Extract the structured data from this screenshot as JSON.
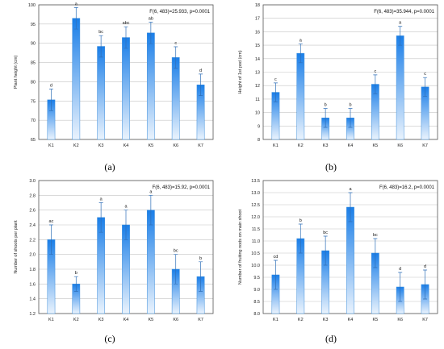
{
  "colors": {
    "bar_top": "#1a7ee8",
    "bar_bottom": "#eaf3fd",
    "bar_stroke": "#3f8fdb",
    "error_bar": "#2f6fb8",
    "grid": "#c4c4c4",
    "frame": "#555555"
  },
  "panels": [
    {
      "caption": "(a)",
      "chart_data": {
        "type": "bar",
        "categories": [
          "K1",
          "K2",
          "K3",
          "K4",
          "K5",
          "K6",
          "K7"
        ],
        "values": [
          75.3,
          96.5,
          89.2,
          91.5,
          92.7,
          86.3,
          79.2
        ],
        "error": [
          2.8,
          2.8,
          2.8,
          2.8,
          2.8,
          2.8,
          2.8
        ],
        "letters": [
          "d",
          "a",
          "bc",
          "abc",
          "ab",
          "c",
          "d"
        ],
        "ylabel": "Plant height (cm)",
        "xlabel": "",
        "ylim": [
          65,
          100
        ],
        "yticks": [
          "65",
          "70",
          "75",
          "80",
          "85",
          "90",
          "95",
          "100"
        ],
        "stat": "F(6, 483)=25.933, p=0.0001",
        "grid": true
      }
    },
    {
      "caption": "(b)",
      "chart_data": {
        "type": "bar",
        "categories": [
          "K1",
          "K2",
          "K3",
          "K4",
          "K5",
          "K6",
          "K7"
        ],
        "values": [
          11.5,
          14.4,
          9.6,
          9.6,
          12.1,
          15.7,
          11.9
        ],
        "error": [
          0.7,
          0.7,
          0.7,
          0.7,
          0.7,
          0.7,
          0.7
        ],
        "letters": [
          "c",
          "a",
          "b",
          "b",
          "c",
          "a",
          "c"
        ],
        "ylabel": "Height of 1st pod (cm)",
        "xlabel": "",
        "ylim": [
          8,
          18
        ],
        "yticks": [
          "8",
          "9",
          "10",
          "11",
          "12",
          "13",
          "14",
          "15",
          "16",
          "17",
          "18"
        ],
        "stat": "F(6, 483)=35.944, p=0.0001",
        "grid": true
      }
    },
    {
      "caption": "(c)",
      "chart_data": {
        "type": "bar",
        "categories": [
          "K1",
          "K2",
          "K3",
          "K4",
          "K5",
          "K6",
          "K7"
        ],
        "values": [
          2.2,
          1.6,
          2.5,
          2.4,
          2.6,
          1.8,
          1.7
        ],
        "error": [
          0.2,
          0.1,
          0.2,
          0.2,
          0.2,
          0.2,
          0.2
        ],
        "letters": [
          "ac",
          "b",
          "a",
          "a",
          "a",
          "bc",
          "b"
        ],
        "ylabel": "Number of shoots per plant",
        "xlabel": "",
        "ylim": [
          1.2,
          3.0
        ],
        "yticks": [
          "1.2",
          "1.4",
          "1.6",
          "1.8",
          "2.0",
          "2.2",
          "2.4",
          "2.6",
          "2.8",
          "3.0"
        ],
        "stat": "F(6, 483)=15.92, p=0.0001",
        "grid": true
      }
    },
    {
      "caption": "(d)",
      "chart_data": {
        "type": "bar",
        "categories": [
          "K1",
          "K2",
          "K3",
          "K4",
          "K5",
          "K6",
          "K7"
        ],
        "values": [
          9.6,
          11.1,
          10.6,
          12.4,
          10.5,
          9.1,
          9.2
        ],
        "error": [
          0.6,
          0.6,
          0.6,
          0.6,
          0.6,
          0.6,
          0.6
        ],
        "letters": [
          "cd",
          "b",
          "bc",
          "a",
          "bc",
          "d",
          "d"
        ],
        "ylabel": "Number of fruiting nods on main shoot",
        "xlabel": "",
        "ylim": [
          8.0,
          13.5
        ],
        "yticks": [
          "8.0",
          "8.5",
          "9.0",
          "9.5",
          "10.0",
          "10.5",
          "11.0",
          "11.5",
          "12.0",
          "12.5",
          "13.0",
          "13.5"
        ],
        "stat": "F(6, 483)=16.2, p=0.0001",
        "grid": true
      }
    }
  ]
}
